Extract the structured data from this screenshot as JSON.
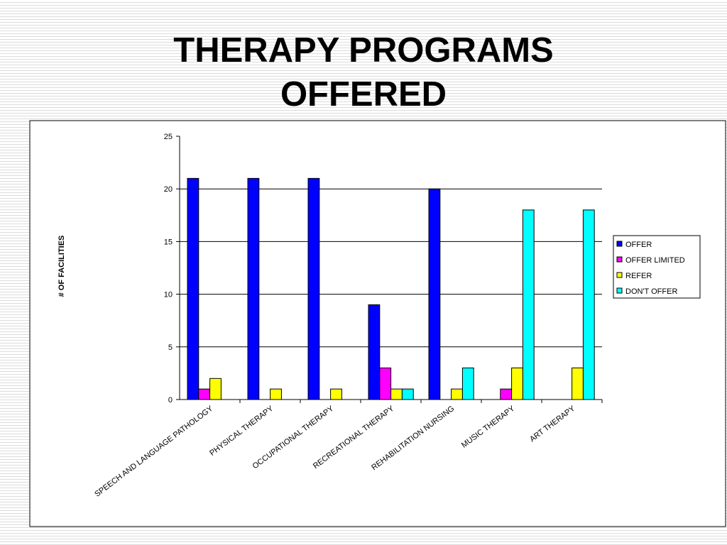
{
  "chart_data": {
    "type": "bar",
    "title": "THERAPY PROGRAMS OFFERED",
    "y_label": "# OF FACILITIES",
    "categories": [
      "SPEECH AND LANGUAGE PATHOLOGY",
      "PHYSICAL THERAPY",
      "OCCUPATIONAL THERAPY",
      "RECREATIONAL THERAPY",
      "REHABILITATION NURSING",
      "MUSIC THERAPY",
      "ART THERAPY"
    ],
    "series": [
      {
        "name": "OFFER",
        "color": "#0000ff",
        "values": [
          21,
          21,
          21,
          9,
          20,
          0,
          0
        ]
      },
      {
        "name": "OFFER LIMITED",
        "color": "#ff00ff",
        "values": [
          1,
          0,
          0,
          3,
          0,
          1,
          0
        ]
      },
      {
        "name": "REFER",
        "color": "#ffff00",
        "values": [
          2,
          1,
          1,
          1,
          1,
          3,
          3
        ]
      },
      {
        "name": "DON'T OFFER",
        "color": "#00ffff",
        "values": [
          0,
          0,
          0,
          1,
          3,
          18,
          18
        ]
      }
    ],
    "ylim": [
      0,
      25
    ],
    "yticks": [
      0,
      5,
      10,
      15,
      20,
      25
    ],
    "grid": true,
    "legend": "right"
  }
}
